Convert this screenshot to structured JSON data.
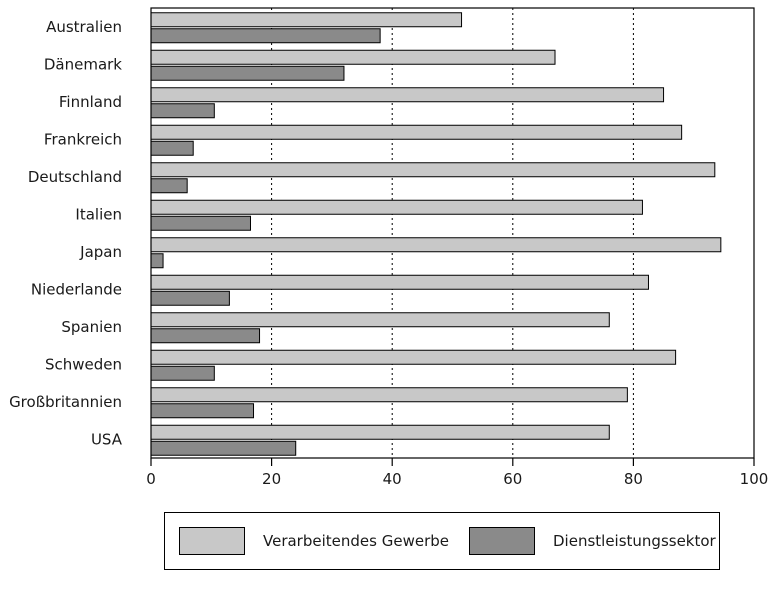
{
  "chart_data": {
    "type": "bar",
    "orientation": "horizontal",
    "categories": [
      "Australien",
      "Dänemark",
      "Finnland",
      "Frankreich",
      "Deutschland",
      "Italien",
      "Japan",
      "Niederlande",
      "Spanien",
      "Schweden",
      "Großbritannien",
      "USA"
    ],
    "series": [
      {
        "name": "Verarbeitendes Gewerbe",
        "color": "#c8c8c8",
        "values": [
          51.5,
          67.0,
          85.0,
          88.0,
          93.5,
          81.5,
          94.5,
          82.5,
          76.0,
          87.0,
          79.0,
          76.0
        ]
      },
      {
        "name": "Dienstleistungssektor",
        "color": "#8a8a8a",
        "values": [
          38.0,
          32.0,
          10.5,
          7.0,
          6.0,
          16.5,
          2.0,
          13.0,
          18.0,
          10.5,
          17.0,
          24.0
        ]
      }
    ],
    "title": "",
    "xlabel": "",
    "ylabel": "",
    "xlim": [
      0,
      100
    ],
    "xticks": [
      0,
      20,
      40,
      60,
      80,
      100
    ],
    "grid": "vertical dotted",
    "legend_position": "bottom"
  }
}
